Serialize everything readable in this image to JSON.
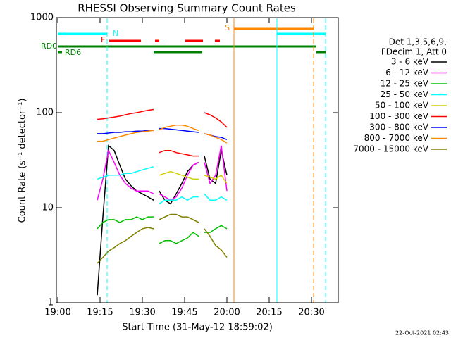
{
  "chart_data": {
    "type": "line",
    "title": "RHESSI Observing Summary Count Rates",
    "x_label": "Start Time (31-May-12 18:59:02)",
    "y_label": "Count Rate (s⁻¹ detector⁻¹)",
    "timestamp": "22-Oct-2021 02:43",
    "legend_title": [
      "Det 1,3,5,6,9,",
      "FDecim 1, Att 0"
    ],
    "annotations": [
      "N",
      "F",
      "S",
      "RD0",
      "RD6"
    ],
    "log_y": true,
    "xlim": [
      -0.5,
      99.5
    ],
    "xticks": [
      {
        "value": 0,
        "label": "19:00"
      },
      {
        "value": 15,
        "label": "19:15"
      },
      {
        "value": 30,
        "label": "19:30"
      },
      {
        "value": 45,
        "label": "19:45"
      },
      {
        "value": 60,
        "label": "20:00"
      },
      {
        "value": 75,
        "label": "20:15"
      },
      {
        "value": 90,
        "label": "20:30"
      }
    ],
    "ylim": [
      1,
      1000
    ],
    "yticks": [
      1,
      10,
      100,
      1000
    ],
    "x": [
      14,
      16,
      18,
      20,
      22,
      24,
      26,
      28,
      30,
      32,
      34,
      35,
      36,
      38,
      40,
      42,
      44,
      46,
      48,
      50,
      51,
      52,
      54,
      56,
      58,
      60
    ],
    "series": [
      {
        "name": "3 - 6 keV",
        "color": "#000000",
        "values": [
          1.2,
          8,
          45,
          40,
          28,
          20,
          17,
          15,
          14,
          13,
          12,
          null,
          15,
          12,
          11,
          14,
          18,
          24,
          28,
          30,
          null,
          35,
          20,
          18,
          40,
          22
        ]
      },
      {
        "name": "6 - 12 keV",
        "color": "#ff00ff",
        "values": [
          12,
          20,
          40,
          30,
          22,
          18,
          16,
          15,
          15,
          15,
          14,
          null,
          14,
          13,
          12,
          13,
          16,
          22,
          28,
          30,
          null,
          30,
          18,
          22,
          45,
          15
        ]
      },
      {
        "name": "12 - 25 keV",
        "color": "#00c000",
        "values": [
          6,
          7,
          7.5,
          7.5,
          7,
          7.5,
          7.5,
          8,
          7.5,
          8,
          8,
          null,
          4.2,
          4.5,
          4.5,
          4.2,
          4.5,
          4.8,
          5.5,
          5,
          null,
          5.5,
          5.5,
          6,
          6.5,
          6
        ]
      },
      {
        "name": "25 - 50 keV",
        "color": "#00ffff",
        "values": [
          20,
          21,
          22,
          22,
          22,
          23,
          23,
          24,
          25,
          26,
          27,
          null,
          11,
          12,
          12,
          12,
          13,
          12,
          13,
          13,
          null,
          14,
          12,
          12,
          13,
          12
        ]
      },
      {
        "name": "50 - 100 keV",
        "color": "#d0d000",
        "values": [
          null,
          null,
          null,
          null,
          null,
          null,
          null,
          null,
          null,
          null,
          null,
          null,
          22,
          23,
          24,
          23,
          22,
          21,
          20,
          20,
          null,
          22,
          21,
          20,
          22,
          18
        ]
      },
      {
        "name": "100 - 300 keV",
        "color": "#ff0000",
        "values": [
          85,
          86,
          88,
          90,
          92,
          95,
          98,
          100,
          103,
          106,
          108,
          null,
          38,
          40,
          40,
          38,
          37,
          36,
          35,
          35,
          null,
          100,
          95,
          88,
          80,
          70
        ]
      },
      {
        "name": "300 - 800 keV",
        "color": "#0000ff",
        "values": [
          60,
          60,
          61,
          62,
          62,
          63,
          63,
          64,
          64,
          65,
          65,
          null,
          68,
          68,
          67,
          66,
          65,
          64,
          63,
          62,
          null,
          60,
          58,
          56,
          55,
          52
        ]
      },
      {
        "name": "800 - 7000 keV",
        "color": "#ff8800",
        "values": [
          50,
          50,
          52,
          54,
          56,
          58,
          60,
          62,
          63,
          64,
          65,
          null,
          66,
          70,
          72,
          74,
          74,
          72,
          68,
          65,
          null,
          60,
          58,
          55,
          52,
          48
        ]
      },
      {
        "name": "7000 - 15000 keV",
        "color": "#808000",
        "values": [
          2.6,
          3,
          3.5,
          3.8,
          4.2,
          4.5,
          5,
          5.5,
          6,
          6.2,
          6,
          null,
          7.5,
          8,
          8.5,
          8.5,
          8,
          8,
          7.5,
          7,
          null,
          6,
          5,
          4,
          3.6,
          3
        ]
      }
    ]
  }
}
